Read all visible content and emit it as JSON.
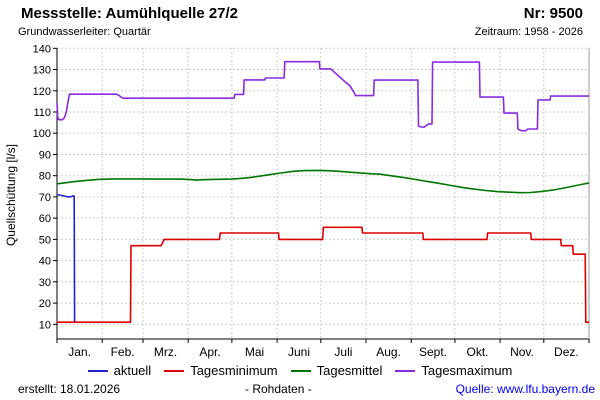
{
  "header": {
    "title": "Messstelle: Aumühlquelle 27/2",
    "number": "Nr: 9500",
    "subtitle": "Grundwasserleiter: Quartär",
    "period": "Zeitraum: 1958 - 2026"
  },
  "footer": {
    "created": "erstellt: 18.01.2026",
    "center": "- Rohdaten -",
    "source": "Quelle: www.lfu.bayern.de"
  },
  "colors": {
    "grid": "#cccccc",
    "axis": "#000000",
    "border_right": "#999999",
    "link": "#0000ee"
  },
  "chart_data": {
    "type": "line",
    "title": "Messstelle: Aumühlquelle 27/2",
    "xlabel": "",
    "ylabel": "Quellschüttung [l/s]",
    "ylim": [
      10,
      140
    ],
    "y_ticks": [
      10,
      20,
      30,
      40,
      50,
      60,
      70,
      80,
      90,
      100,
      110,
      120,
      130,
      140
    ],
    "x_unit": "day_of_year",
    "x_range_days": [
      0,
      365
    ],
    "month_labels": [
      "Jan.",
      "Feb.",
      "Mrz.",
      "Apr.",
      "Mai",
      "Juni",
      "Juli",
      "Aug.",
      "Sept.",
      "Okt.",
      "Nov.",
      "Dez."
    ],
    "month_boundaries": [
      0,
      31,
      59,
      90,
      120,
      151,
      181,
      212,
      243,
      273,
      304,
      334,
      365
    ],
    "grid": true,
    "legend_position": "bottom",
    "series": [
      {
        "name": "aktuell",
        "color": "#2222cc",
        "points": [
          [
            0,
            71
          ],
          [
            1.5,
            70.9
          ],
          [
            3,
            70.7
          ],
          [
            5,
            70.4
          ],
          [
            7,
            70.1
          ],
          [
            9,
            70.0
          ],
          [
            10,
            70.2
          ],
          [
            11,
            70.5
          ],
          [
            11.8,
            70.3
          ],
          [
            12.1,
            11.3
          ]
        ]
      },
      {
        "name": "Tagesminimum",
        "color": "#dd0000",
        "points": [
          [
            0,
            11
          ],
          [
            50.4,
            11
          ],
          [
            50.8,
            47
          ],
          [
            71.5,
            47
          ],
          [
            72.5,
            48.5
          ],
          [
            73.5,
            50
          ],
          [
            111.5,
            50
          ],
          [
            112,
            53
          ],
          [
            152,
            53
          ],
          [
            152.4,
            50
          ],
          [
            182.3,
            50
          ],
          [
            182.7,
            55.7
          ],
          [
            209.2,
            55.7
          ],
          [
            209.6,
            53
          ],
          [
            251,
            53
          ],
          [
            251.4,
            50
          ],
          [
            295,
            50
          ],
          [
            295.4,
            53
          ],
          [
            325,
            53
          ],
          [
            325.4,
            50
          ],
          [
            345.6,
            50
          ],
          [
            346,
            47
          ],
          [
            353.8,
            47
          ],
          [
            354.2,
            43
          ],
          [
            362.4,
            43
          ],
          [
            362.8,
            11
          ],
          [
            365,
            11
          ]
        ]
      },
      {
        "name": "Tagesmittel",
        "color": "#007700",
        "points": [
          [
            0,
            76.2
          ],
          [
            5,
            76.6
          ],
          [
            12,
            77.2
          ],
          [
            20,
            77.8
          ],
          [
            29,
            78.3
          ],
          [
            40,
            78.5
          ],
          [
            55,
            78.5
          ],
          [
            70,
            78.4
          ],
          [
            85,
            78.4
          ],
          [
            93,
            78.1
          ],
          [
            96,
            77.9
          ],
          [
            100,
            78.1
          ],
          [
            110,
            78.3
          ],
          [
            120,
            78.4
          ],
          [
            126,
            78.7
          ],
          [
            133,
            79.2
          ],
          [
            140,
            79.9
          ],
          [
            148,
            80.7
          ],
          [
            156,
            81.5
          ],
          [
            163,
            82.1
          ],
          [
            170,
            82.4
          ],
          [
            177,
            82.5
          ],
          [
            184,
            82.4
          ],
          [
            192,
            82.1
          ],
          [
            200,
            81.7
          ],
          [
            208,
            81.3
          ],
          [
            216,
            80.9
          ],
          [
            222,
            80.7
          ],
          [
            230,
            79.9
          ],
          [
            238,
            79.1
          ],
          [
            246,
            78.2
          ],
          [
            254,
            77.3
          ],
          [
            262,
            76.4
          ],
          [
            270,
            75.4
          ],
          [
            278,
            74.5
          ],
          [
            286,
            73.7
          ],
          [
            294,
            73.0
          ],
          [
            302,
            72.5
          ],
          [
            310,
            72.2
          ],
          [
            318,
            72.0
          ],
          [
            325,
            72.1
          ],
          [
            332,
            72.5
          ],
          [
            340,
            73.2
          ],
          [
            348,
            74.2
          ],
          [
            355,
            75.2
          ],
          [
            360,
            75.9
          ],
          [
            364,
            76.4
          ],
          [
            365,
            76.6
          ]
        ]
      },
      {
        "name": "Tagesmaximum",
        "color": "#8a2be2",
        "points": [
          [
            0,
            114.6
          ],
          [
            0.5,
            107.5
          ],
          [
            1,
            106.4
          ],
          [
            3.5,
            106.3
          ],
          [
            4.5,
            106.8
          ],
          [
            5.5,
            108
          ],
          [
            6.5,
            110.5
          ],
          [
            7.5,
            114.5
          ],
          [
            8.5,
            118.4
          ],
          [
            41,
            118.4
          ],
          [
            42,
            118
          ],
          [
            45,
            116.6
          ],
          [
            46,
            116.5
          ],
          [
            121.5,
            116.5
          ],
          [
            122,
            118.3
          ],
          [
            128,
            118.3
          ],
          [
            128.4,
            125.1
          ],
          [
            142.6,
            125.1
          ],
          [
            143,
            126
          ],
          [
            155.8,
            126
          ],
          [
            156.3,
            133.7
          ],
          [
            180,
            133.7
          ],
          [
            180.4,
            130.3
          ],
          [
            188,
            130.3
          ],
          [
            190,
            129
          ],
          [
            194,
            126.5
          ],
          [
            198,
            124
          ],
          [
            201,
            122.3
          ],
          [
            204,
            119
          ],
          [
            204.8,
            117.7
          ],
          [
            217.2,
            117.7
          ],
          [
            217.6,
            125
          ],
          [
            247.6,
            125
          ],
          [
            248,
            103.4
          ],
          [
            249.5,
            103
          ],
          [
            252,
            102.9
          ],
          [
            255,
            104.4
          ],
          [
            257.3,
            104.4
          ],
          [
            257.7,
            133.5
          ],
          [
            289.8,
            133.5
          ],
          [
            290.2,
            117
          ],
          [
            306.3,
            117
          ],
          [
            306.7,
            109.5
          ],
          [
            315.8,
            109.5
          ],
          [
            316.2,
            102
          ],
          [
            318.5,
            101.2
          ],
          [
            321.5,
            101.2
          ],
          [
            323,
            102
          ],
          [
            329.6,
            102
          ],
          [
            330,
            115.7
          ],
          [
            338.3,
            115.7
          ],
          [
            338.7,
            117.5
          ],
          [
            365,
            117.5
          ]
        ]
      }
    ]
  }
}
